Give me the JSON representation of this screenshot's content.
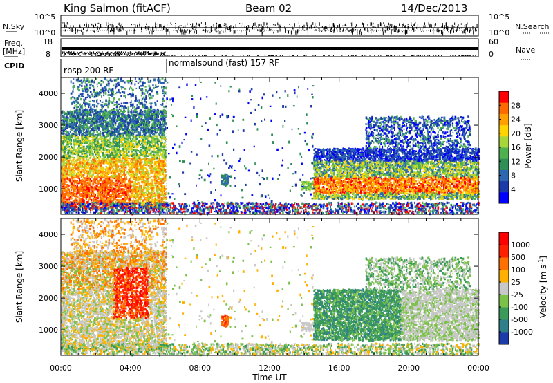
{
  "header": {
    "station": "King Salmon (fitACF)",
    "beam": "Beam 02",
    "date": "14/Dec/2013"
  },
  "aux_panels": {
    "nsky_label": "N.Sky",
    "nsearch_label": "N.Search",
    "nsky_ticks": [
      "10^5",
      "10^0"
    ],
    "nsearch_ticks": [
      "10^5",
      "10^0"
    ],
    "freq_label": "Freq.",
    "freq_unit": "[MHz]",
    "freq_ticks": [
      "18",
      "8"
    ],
    "nave_label": "Nave",
    "nave_ticks": [
      "60",
      "0"
    ],
    "cpid_label": "CPID",
    "cpid_segments": [
      "rbsp 200 RF",
      "normalsound (fast) 157 RF"
    ]
  },
  "chart_data": [
    {
      "type": "heatmap",
      "title": "",
      "ylabel": "Slant Range [km]",
      "xlabel": "",
      "x_ticks": [
        "00:00",
        "04:00",
        "08:00",
        "12:00",
        "16:00",
        "20:00",
        "00:00"
      ],
      "y_ticks": [
        "1000",
        "2000",
        "3000",
        "4000"
      ],
      "ylim": [
        200,
        4500
      ],
      "colorbar": {
        "label": "Power [dB]",
        "ticks": [
          "28",
          "24",
          "20",
          "16",
          "12",
          "8",
          "4"
        ],
        "range": [
          0,
          30
        ],
        "colors": [
          "#0000ff",
          "#1c3aa8",
          "#2b68b0",
          "#2f8f56",
          "#4fb04f",
          "#a6d63a",
          "#ffd400",
          "#ffa000",
          "#ff6a00",
          "#ff0000"
        ]
      }
    },
    {
      "type": "heatmap",
      "title": "",
      "ylabel": "Slant Range [km]",
      "xlabel": "Time UT",
      "x_ticks": [
        "00:00",
        "04:00",
        "08:00",
        "12:00",
        "16:00",
        "20:00",
        "00:00"
      ],
      "y_ticks": [
        "1000",
        "2000",
        "3000",
        "4000"
      ],
      "ylim": [
        200,
        4500
      ],
      "colorbar": {
        "label": "Velocity [m s",
        "label_sup": "-1",
        "label_tail": "]",
        "ticks": [
          "1000",
          "500",
          "100",
          "25",
          "-25",
          "-100",
          "-500",
          "-1000"
        ],
        "colors": [
          "#1c3aa8",
          "#2f7f8a",
          "#3a9a5a",
          "#7cc24a",
          "#c8c8c8",
          "#ffb000",
          "#ff7000",
          "#ff2000",
          "#ff0000"
        ]
      }
    }
  ]
}
